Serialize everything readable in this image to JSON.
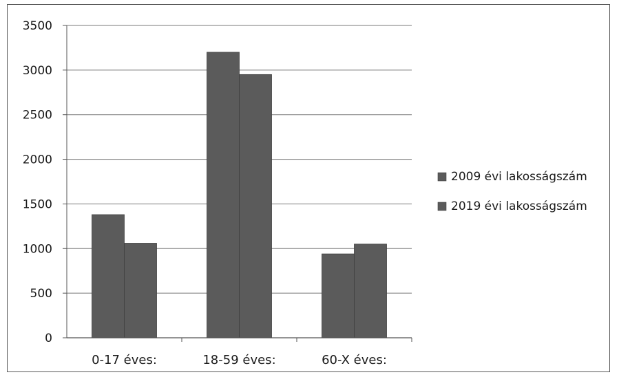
{
  "chart_data": {
    "type": "bar",
    "categories": [
      "0-17 éves:",
      "18-59 éves:",
      "60-X éves:"
    ],
    "series": [
      {
        "name": "2009 évi lakosságszám",
        "values": [
          1380,
          3200,
          940
        ],
        "color": "#5b5b5b"
      },
      {
        "name": "2019 évi lakosságszám",
        "values": [
          1060,
          2950,
          1050
        ],
        "color": "#5b5b5b"
      }
    ],
    "y_ticks": [
      "0",
      "500",
      "1000",
      "1500",
      "2000",
      "2500",
      "3000",
      "3500"
    ],
    "ylim": [
      0,
      3500
    ],
    "grid": true,
    "legend_position": "right"
  }
}
